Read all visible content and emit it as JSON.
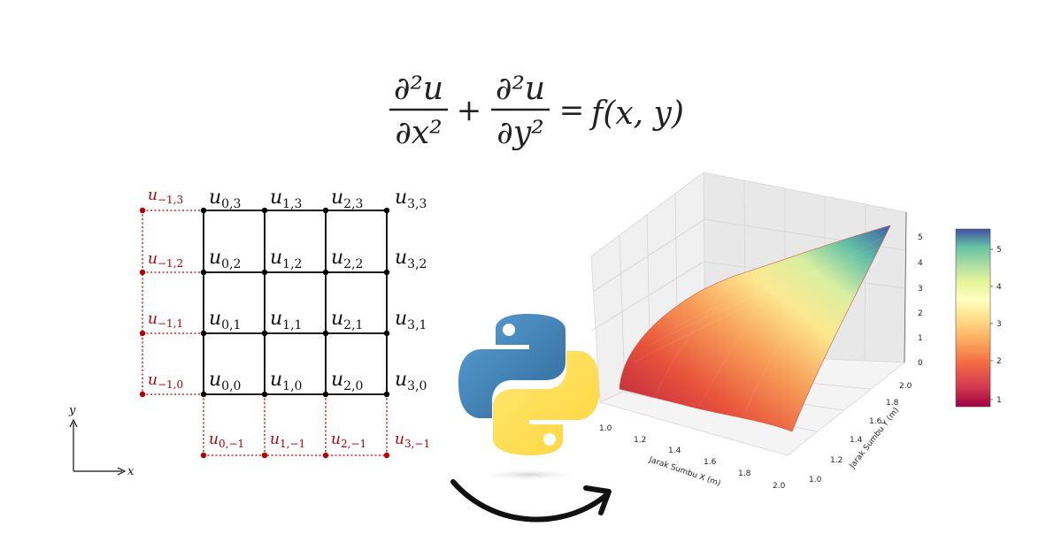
{
  "equation": {
    "term1_num": "∂²u",
    "term1_den": "∂x²",
    "plus": "+",
    "term2_num": "∂²u",
    "term2_den": "∂y²",
    "equals": "=",
    "rhs": "f(x, y)"
  },
  "grid": {
    "interior_labels": [
      [
        "u",
        "0,3"
      ],
      [
        "u",
        "1,3"
      ],
      [
        "u",
        "2,3"
      ],
      [
        "u",
        "3,3"
      ],
      [
        "u",
        "0,2"
      ],
      [
        "u",
        "1,2"
      ],
      [
        "u",
        "2,2"
      ],
      [
        "u",
        "3,2"
      ],
      [
        "u",
        "0,1"
      ],
      [
        "u",
        "1,1"
      ],
      [
        "u",
        "2,1"
      ],
      [
        "u",
        "3,1"
      ],
      [
        "u",
        "0,0"
      ],
      [
        "u",
        "1,0"
      ],
      [
        "u",
        "2,0"
      ],
      [
        "u",
        "3,0"
      ]
    ],
    "ghost_left_labels": [
      [
        "u",
        "−1,3"
      ],
      [
        "u",
        "−1,2"
      ],
      [
        "u",
        "−1,1"
      ],
      [
        "u",
        "−1,0"
      ]
    ],
    "ghost_bottom_labels": [
      [
        "u",
        "0,−1"
      ],
      [
        "u",
        "1,−1"
      ],
      [
        "u",
        "2,−1"
      ],
      [
        "u",
        "3,−1"
      ]
    ],
    "axis_x": "x",
    "axis_y": "y",
    "colors": {
      "interior": "#000000",
      "ghost": "#b40000"
    }
  },
  "icons": {
    "logo": "python-logo-icon",
    "arrow": "curved-arrow-icon"
  },
  "plot3d": {
    "xlabel": "Jarak Sumbu X (m)",
    "ylabel": "Jarak Sumbu Y (m)",
    "x_ticks": [
      "1.0",
      "1.2",
      "1.4",
      "1.6",
      "1.8",
      "2.0"
    ],
    "y_ticks": [
      "1.0",
      "1.2",
      "1.4",
      "1.6",
      "1.8",
      "2.0"
    ],
    "z_ticks": [
      "0",
      "1",
      "2",
      "3",
      "4",
      "5"
    ],
    "colorbar_ticks": [
      "1",
      "2",
      "3",
      "4",
      "5"
    ],
    "colormap": "Spectral",
    "z_range": [
      0,
      5.5
    ]
  }
}
